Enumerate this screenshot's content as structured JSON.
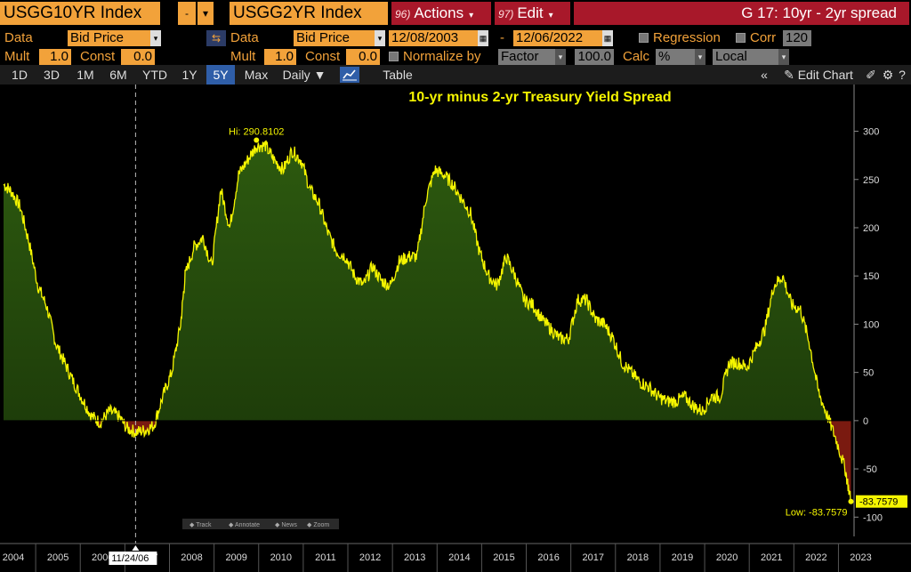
{
  "header": {
    "security1": "USGG10YR Index",
    "minus": "-",
    "security2": "USGG2YR Index",
    "actions_num": "96)",
    "actions_label": "Actions",
    "edit_num": "97)",
    "edit_label": "Edit",
    "chart_title": "G 17: 10yr - 2yr spread"
  },
  "settings": {
    "data_label": "Data",
    "data1_value": "Bid Price",
    "data2_value": "Bid Price",
    "start_date": "12/08/2003",
    "date_sep": "-",
    "end_date": "12/06/2022",
    "regression_label": "Regression",
    "corr_label": "Corr",
    "corr_value": "120",
    "mult_label": "Mult",
    "mult1_value": "1.0",
    "const_label": "Const",
    "const1_value": "0.0",
    "mult2_value": "1.0",
    "const2_value": "0.0",
    "normalize_label": "Normalize by",
    "factor_value": "Factor",
    "factor_num": "100.0",
    "calc_label": "Calc",
    "calc_value": "%",
    "ccy_value": "Local CCY"
  },
  "toolbar": {
    "periods": [
      "1D",
      "3D",
      "1M",
      "6M",
      "YTD",
      "1Y",
      "5Y",
      "Max"
    ],
    "active_period": "5Y",
    "frequency": "Daily",
    "table_label": "Table",
    "edit_chart_label": "Edit Chart"
  },
  "chart_overlay": {
    "hi_label": "Hi: 290.8102",
    "low_label": "Low: -83.7579",
    "last_value": "-83.7579",
    "cursor_date": "11/24/06",
    "mini_tools": [
      "Track",
      "Annotate",
      "News",
      "Zoom"
    ]
  },
  "colors": {
    "line": "#f5f500",
    "positive_fill": "#2d5a0f",
    "negative_fill": "#7a1a10",
    "accent": "#f2a23a",
    "title_bar": "#a8182a"
  },
  "chart_data": {
    "type": "area",
    "title": "10-yr minus 2-yr Treasury Yield Spread",
    "xlabel": "",
    "ylabel": "",
    "x_tick_labels": [
      "2004",
      "2005",
      "2006",
      "2007",
      "2008",
      "2009",
      "2010",
      "2011",
      "2012",
      "2013",
      "2014",
      "2015",
      "2016",
      "2017",
      "2018",
      "2019",
      "2020",
      "2021",
      "2022",
      "2023"
    ],
    "y_ticks": [
      300,
      250,
      200,
      150,
      100,
      50,
      0,
      -50,
      -100
    ],
    "ylim": [
      -120,
      330
    ],
    "xlim": [
      2003.93,
      2023.0
    ],
    "grid": false,
    "series": [
      {
        "x": [
          2003.93,
          2004.1,
          2004.3,
          2004.5,
          2004.7,
          2004.9,
          2005.1,
          2005.3,
          2005.5,
          2005.7,
          2005.9,
          2006.1,
          2006.3,
          2006.5,
          2006.7,
          2006.9,
          2007.1,
          2007.3,
          2007.5,
          2007.7,
          2007.9,
          2008.0,
          2008.2,
          2008.4,
          2008.6,
          2008.8,
          2009.0,
          2009.2,
          2009.4,
          2009.6,
          2009.8,
          2010.0,
          2010.2,
          2010.4,
          2010.6,
          2010.8,
          2011.0,
          2011.2,
          2011.4,
          2011.6,
          2011.8,
          2012.0,
          2012.2,
          2012.4,
          2012.6,
          2012.8,
          2013.0,
          2013.2,
          2013.4,
          2013.6,
          2013.8,
          2014.0,
          2014.2,
          2014.4,
          2014.6,
          2014.8,
          2015.0,
          2015.2,
          2015.4,
          2015.6,
          2015.8,
          2016.0,
          2016.2,
          2016.4,
          2016.6,
          2016.8,
          2017.0,
          2017.2,
          2017.4,
          2017.6,
          2017.8,
          2018.0,
          2018.2,
          2018.4,
          2018.6,
          2018.8,
          2019.0,
          2019.2,
          2019.4,
          2019.6,
          2019.8,
          2020.0,
          2020.2,
          2020.4,
          2020.6,
          2020.8,
          2021.0,
          2021.2,
          2021.4,
          2021.6,
          2021.8,
          2022.0,
          2022.2,
          2022.4,
          2022.6,
          2022.8,
          2022.93
        ],
        "y": [
          245,
          238,
          222,
          185,
          140,
          118,
          80,
          60,
          40,
          22,
          5,
          -2,
          10,
          5,
          -8,
          -12,
          -10,
          -5,
          25,
          50,
          100,
          150,
          180,
          190,
          160,
          240,
          200,
          255,
          270,
          285,
          285,
          270,
          260,
          280,
          270,
          240,
          225,
          195,
          175,
          170,
          150,
          140,
          160,
          145,
          140,
          165,
          170,
          170,
          230,
          260,
          255,
          245,
          230,
          215,
          175,
          150,
          140,
          170,
          150,
          125,
          120,
          105,
          95,
          85,
          85,
          125,
          125,
          105,
          100,
          85,
          60,
          50,
          40,
          35,
          25,
          20,
          20,
          25,
          15,
          10,
          25,
          25,
          60,
          60,
          55,
          75,
          95,
          140,
          150,
          120,
          115,
          80,
          30,
          5,
          -20,
          -50,
          -83.76
        ]
      }
    ],
    "annotations": [
      {
        "text": "Hi: 290.8102",
        "x": 2009.6,
        "y": 290.81
      },
      {
        "text": "Low: -83.7579",
        "x": 2022.93,
        "y": -83.76
      }
    ]
  }
}
